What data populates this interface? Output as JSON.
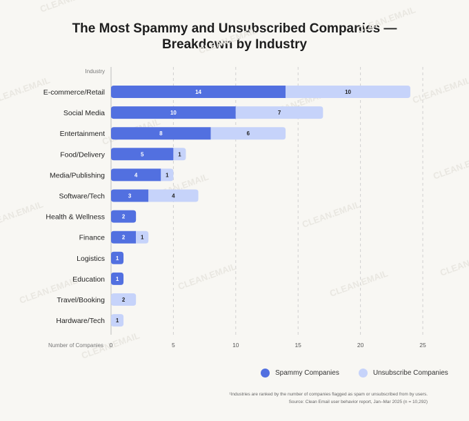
{
  "chart_data": {
    "type": "bar",
    "orientation": "horizontal",
    "stacked": true,
    "title_lines": [
      "The Most Spammy and Unsubscribed Companies —",
      "Breakdown by Industry"
    ],
    "ylabel": "Industry",
    "xlabel": "Number of Companies",
    "xlim": [
      0,
      25
    ],
    "xticks": [
      0,
      5,
      10,
      15,
      20,
      25
    ],
    "categories": [
      "E-commerce/Retail",
      "Social Media",
      "Entertainment",
      "Food/Delivery",
      "Media/Publishing",
      "Software/Tech",
      "Health & Wellness",
      "Finance",
      "Logistics",
      "Education",
      "Travel/Booking",
      "Hardware/Tech"
    ],
    "series": [
      {
        "name": "Spammy Companies",
        "color": "#5270e0",
        "values": [
          14,
          10,
          8,
          5,
          4,
          3,
          2,
          2,
          1,
          1,
          0,
          0
        ]
      },
      {
        "name": "Unsubscribe Companies",
        "color": "#c6d3fa",
        "values": [
          10,
          7,
          6,
          1,
          1,
          4,
          0,
          1,
          0,
          0,
          2,
          1
        ]
      }
    ],
    "footnote": "¹Industries are ranked by the number of companies flagged as spam or unsubscribed from by users.",
    "source": "Source: Clean Email user behavior report, Jan–Mar 2025 (n = 10,292)",
    "watermark": "CLEAN.EMAIL"
  }
}
